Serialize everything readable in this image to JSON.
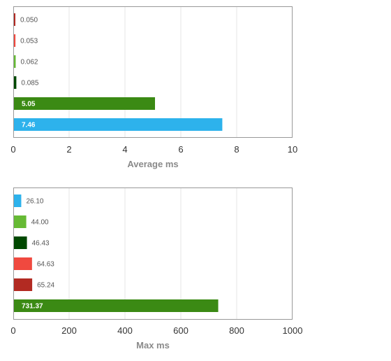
{
  "chart_data": [
    {
      "type": "bar",
      "orientation": "horizontal",
      "xlabel": "Average ms",
      "xlim": [
        0,
        10
      ],
      "ticks": [
        "0",
        "2",
        "4",
        "6",
        "8",
        "10"
      ],
      "grid": true,
      "bars": [
        {
          "value": 0.05,
          "label": "0.050",
          "color": "#b22a22"
        },
        {
          "value": 0.053,
          "label": "0.053",
          "color": "#f0493f"
        },
        {
          "value": 0.062,
          "label": "0.062",
          "color": "#66ba34"
        },
        {
          "value": 0.085,
          "label": "0.085",
          "color": "#004800"
        },
        {
          "value": 5.05,
          "label": "5.05",
          "color": "#3b8a14"
        },
        {
          "value": 7.46,
          "label": "7.46",
          "color": "#2db2ec"
        }
      ]
    },
    {
      "type": "bar",
      "orientation": "horizontal",
      "xlabel": "Max ms",
      "xlim": [
        0,
        1000
      ],
      "ticks": [
        "0",
        "200",
        "400",
        "600",
        "800",
        "1000"
      ],
      "grid": true,
      "bars": [
        {
          "value": 26.1,
          "label": "26.10",
          "color": "#2db2ec"
        },
        {
          "value": 44.0,
          "label": "44.00",
          "color": "#66ba34"
        },
        {
          "value": 46.43,
          "label": "46.43",
          "color": "#004800"
        },
        {
          "value": 64.63,
          "label": "64.63",
          "color": "#f0493f"
        },
        {
          "value": 65.24,
          "label": "65.24",
          "color": "#b22a22"
        },
        {
          "value": 731.37,
          "label": "731.37",
          "color": "#3b8a14"
        }
      ]
    }
  ]
}
